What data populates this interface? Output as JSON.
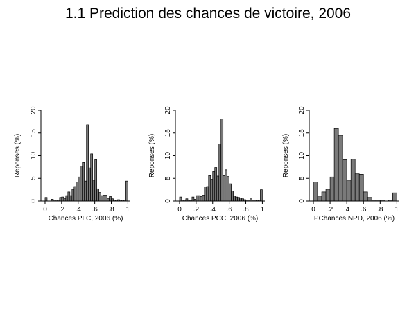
{
  "title": "1.1 Prediction des chances de victoire, 2006",
  "colors": {
    "bar_fill": "#7a7a7a",
    "bar_stroke": "#000000",
    "axis": "#000000"
  },
  "chart_data": [
    {
      "type": "bar",
      "subtype": "histogram",
      "xlabel": "Chances PLC, 2006 (%)",
      "ylabel": "Reponses (%)",
      "xlim": [
        -0.05,
        1.03
      ],
      "ylim": [
        0,
        20
      ],
      "xticks": [
        "0",
        ".2",
        ".4",
        ".6",
        ".8",
        "1"
      ],
      "xtick_values": [
        0,
        0.2,
        0.4,
        0.6,
        0.8,
        1
      ],
      "yticks": [
        "0",
        "5",
        "10",
        "15",
        "20"
      ],
      "ytick_values": [
        0,
        5,
        10,
        15,
        20
      ],
      "bin_width": 0.025,
      "bins": [
        {
          "x": 0.0,
          "y": 0.8
        },
        {
          "x": 0.025,
          "y": 0.0
        },
        {
          "x": 0.075,
          "y": 0.4
        },
        {
          "x": 0.1,
          "y": 0.2
        },
        {
          "x": 0.125,
          "y": 0.2
        },
        {
          "x": 0.15,
          "y": 0.2
        },
        {
          "x": 0.175,
          "y": 0.8
        },
        {
          "x": 0.2,
          "y": 0.9
        },
        {
          "x": 0.225,
          "y": 0.6
        },
        {
          "x": 0.25,
          "y": 1.2
        },
        {
          "x": 0.275,
          "y": 2.0
        },
        {
          "x": 0.3,
          "y": 1.2
        },
        {
          "x": 0.325,
          "y": 2.6
        },
        {
          "x": 0.35,
          "y": 3.2
        },
        {
          "x": 0.375,
          "y": 4.2
        },
        {
          "x": 0.4,
          "y": 5.3
        },
        {
          "x": 0.425,
          "y": 7.7
        },
        {
          "x": 0.45,
          "y": 8.5
        },
        {
          "x": 0.475,
          "y": 4.4
        },
        {
          "x": 0.5,
          "y": 16.8
        },
        {
          "x": 0.525,
          "y": 7.3
        },
        {
          "x": 0.55,
          "y": 10.4
        },
        {
          "x": 0.575,
          "y": 4.6
        },
        {
          "x": 0.6,
          "y": 9.1
        },
        {
          "x": 0.625,
          "y": 2.7
        },
        {
          "x": 0.65,
          "y": 1.9
        },
        {
          "x": 0.675,
          "y": 1.2
        },
        {
          "x": 0.7,
          "y": 1.3
        },
        {
          "x": 0.725,
          "y": 1.3
        },
        {
          "x": 0.75,
          "y": 0.6
        },
        {
          "x": 0.775,
          "y": 1.0
        },
        {
          "x": 0.8,
          "y": 0.5
        },
        {
          "x": 0.825,
          "y": 0.2
        },
        {
          "x": 0.85,
          "y": 0.2
        },
        {
          "x": 0.875,
          "y": 0.3
        },
        {
          "x": 0.9,
          "y": 0.2
        },
        {
          "x": 0.925,
          "y": 0.2
        },
        {
          "x": 0.95,
          "y": 0.2
        },
        {
          "x": 0.975,
          "y": 4.4
        }
      ]
    },
    {
      "type": "bar",
      "subtype": "histogram",
      "xlabel": "Chances PCC, 2006 (%)",
      "ylabel": "Reponses (%)",
      "xlim": [
        -0.05,
        1.03
      ],
      "ylim": [
        0,
        20
      ],
      "xticks": [
        "0",
        ".2",
        ".4",
        ".6",
        ".8",
        "1"
      ],
      "xtick_values": [
        0,
        0.2,
        0.4,
        0.6,
        0.8,
        1
      ],
      "yticks": [
        "0",
        "5",
        "10",
        "15",
        "20"
      ],
      "ytick_values": [
        0,
        5,
        10,
        15,
        20
      ],
      "bin_width": 0.025,
      "bins": [
        {
          "x": 0.0,
          "y": 0.9
        },
        {
          "x": 0.025,
          "y": 0.2
        },
        {
          "x": 0.05,
          "y": 0.2
        },
        {
          "x": 0.075,
          "y": 0.5
        },
        {
          "x": 0.1,
          "y": 0.2
        },
        {
          "x": 0.125,
          "y": 0.2
        },
        {
          "x": 0.15,
          "y": 0.9
        },
        {
          "x": 0.175,
          "y": 0.4
        },
        {
          "x": 0.2,
          "y": 1.2
        },
        {
          "x": 0.225,
          "y": 1.2
        },
        {
          "x": 0.25,
          "y": 1.0
        },
        {
          "x": 0.275,
          "y": 1.3
        },
        {
          "x": 0.3,
          "y": 3.1
        },
        {
          "x": 0.325,
          "y": 3.2
        },
        {
          "x": 0.35,
          "y": 5.6
        },
        {
          "x": 0.375,
          "y": 4.8
        },
        {
          "x": 0.4,
          "y": 6.5
        },
        {
          "x": 0.425,
          "y": 7.4
        },
        {
          "x": 0.45,
          "y": 5.5
        },
        {
          "x": 0.475,
          "y": 12.6
        },
        {
          "x": 0.5,
          "y": 18.1
        },
        {
          "x": 0.525,
          "y": 5.6
        },
        {
          "x": 0.55,
          "y": 6.9
        },
        {
          "x": 0.575,
          "y": 5.4
        },
        {
          "x": 0.6,
          "y": 3.8
        },
        {
          "x": 0.625,
          "y": 2.2
        },
        {
          "x": 0.65,
          "y": 1.1
        },
        {
          "x": 0.675,
          "y": 0.9
        },
        {
          "x": 0.7,
          "y": 0.8
        },
        {
          "x": 0.725,
          "y": 0.7
        },
        {
          "x": 0.75,
          "y": 0.5
        },
        {
          "x": 0.775,
          "y": 0.3
        },
        {
          "x": 0.8,
          "y": 0.2
        },
        {
          "x": 0.825,
          "y": 0.2
        },
        {
          "x": 0.85,
          "y": 0.5
        },
        {
          "x": 0.875,
          "y": 0.2
        },
        {
          "x": 0.9,
          "y": 0.2
        },
        {
          "x": 0.925,
          "y": 0.2
        },
        {
          "x": 0.95,
          "y": 0.2
        },
        {
          "x": 0.975,
          "y": 2.5
        }
      ]
    },
    {
      "type": "bar",
      "subtype": "histogram",
      "xlabel": "PChances NPD, 2006 (%)",
      "ylabel": "Reponses (%)",
      "xlim": [
        -0.05,
        1.03
      ],
      "ylim": [
        0,
        20
      ],
      "xticks": [
        "0",
        ".2",
        ".4",
        ".6",
        ".8",
        "1"
      ],
      "xtick_values": [
        0,
        0.2,
        0.4,
        0.6,
        0.8,
        1
      ],
      "yticks": [
        "0",
        "5",
        "10",
        "15",
        "20"
      ],
      "ytick_values": [
        0,
        5,
        10,
        15,
        20
      ],
      "bin_width": 0.05,
      "bins": [
        {
          "x": 0.0,
          "y": 4.2
        },
        {
          "x": 0.05,
          "y": 1.1
        },
        {
          "x": 0.1,
          "y": 2.0
        },
        {
          "x": 0.15,
          "y": 2.6
        },
        {
          "x": 0.2,
          "y": 5.3
        },
        {
          "x": 0.25,
          "y": 16.0
        },
        {
          "x": 0.3,
          "y": 14.5
        },
        {
          "x": 0.35,
          "y": 9.1
        },
        {
          "x": 0.4,
          "y": 4.6
        },
        {
          "x": 0.45,
          "y": 9.2
        },
        {
          "x": 0.5,
          "y": 6.0
        },
        {
          "x": 0.55,
          "y": 5.9
        },
        {
          "x": 0.6,
          "y": 2.0
        },
        {
          "x": 0.65,
          "y": 0.8
        },
        {
          "x": 0.7,
          "y": 0.2
        },
        {
          "x": 0.75,
          "y": 0.2
        },
        {
          "x": 0.8,
          "y": 0.2
        },
        {
          "x": 0.85,
          "y": 0.0
        },
        {
          "x": 0.9,
          "y": 0.2
        },
        {
          "x": 0.95,
          "y": 1.8
        }
      ]
    }
  ]
}
